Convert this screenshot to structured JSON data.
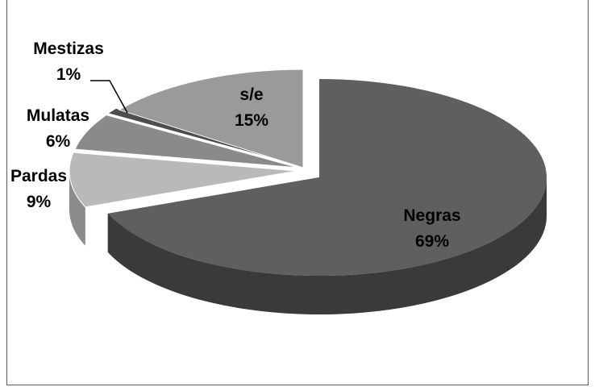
{
  "chart_data": {
    "type": "pie",
    "title": "",
    "slices": [
      {
        "label": "Negras",
        "value": 69,
        "percent_label": "69%",
        "color": "#5f5f5f",
        "side_color": "#3a3a3a",
        "exploded": true
      },
      {
        "label": "Pardas",
        "value": 9,
        "percent_label": "9%",
        "color": "#b9b9b9",
        "side_color": "#8c8c8c",
        "exploded": false
      },
      {
        "label": "Mulatas",
        "value": 6,
        "percent_label": "6%",
        "color": "#8a8a8a",
        "side_color": "#6a6a6a",
        "exploded": false
      },
      {
        "label": "Mestizas",
        "value": 1,
        "percent_label": "1%",
        "color": "#4e4e4e",
        "side_color": "#333333",
        "exploded": false
      },
      {
        "label": "s/e",
        "value": 15,
        "percent_label": "15%",
        "color": "#9a9a9a",
        "side_color": "#777777",
        "exploded": false
      }
    ],
    "legend": "none",
    "style": "3d-exploded-pie"
  }
}
